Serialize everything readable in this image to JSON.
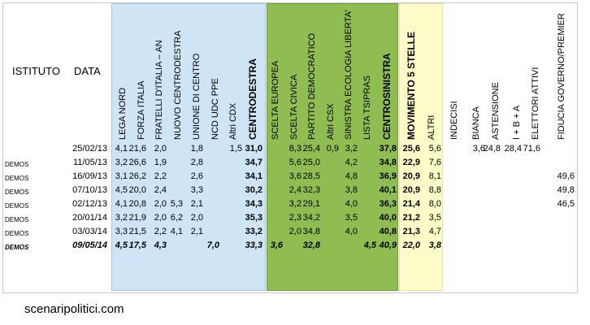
{
  "chart_data": {
    "type": "table",
    "header_institute": "ISTITUTO",
    "header_date": "DATA",
    "columns": [
      "LEGA NORD",
      "FORZA ITALIA",
      "FRATELLI D'ITALIA – AN",
      "NUOVO CENTRODESTRA",
      "UNIONE DI CENTRO",
      "NCD UDC PPE",
      "Altri CDX",
      "CENTRODESTRA",
      "SCELTA EUROPEA",
      "SCELTA CIVICA",
      "PARTITO DEMOCRATICO",
      "Altri CSX",
      "SINISTRA ECOLOGIA LIBERTA'",
      "LISTA TSIPRAS",
      "CENTROSINISTRA",
      "MOVIMENTO 5 STELLE",
      "ALTRI",
      "INDECISI",
      "BIANCA",
      "ASTENSIONE",
      "I + B + A",
      "ELETTORI ATTIVI",
      "FIDUCIA GOVERNO/PREMIER"
    ],
    "rows": [
      {
        "institute": "",
        "date": "25/02/13",
        "values": [
          "4,1",
          "21,6",
          "2,0",
          "",
          "1,8",
          "",
          "1,5",
          "31,0",
          "",
          "8,3",
          "25,4",
          "0,9",
          "3,2",
          "",
          "37,8",
          "25,6",
          "5,6",
          "",
          "3,6",
          "24,8",
          "28,4",
          "71,6",
          ""
        ]
      },
      {
        "institute": "DEMOS",
        "date": "11/05/13",
        "values": [
          "3,2",
          "26,6",
          "1,9",
          "",
          "2,8",
          "",
          "",
          "34,7",
          "",
          "5,6",
          "25,0",
          "",
          "4,2",
          "",
          "34,8",
          "22,9",
          "7,6",
          "",
          "",
          "",
          "",
          "",
          ""
        ]
      },
      {
        "institute": "DEMOS",
        "date": "16/09/13",
        "values": [
          "3,1",
          "26,2",
          "2,2",
          "",
          "2,6",
          "",
          "",
          "34,1",
          "",
          "3,6",
          "28,5",
          "",
          "4,8",
          "",
          "36,9",
          "20,9",
          "8,1",
          "",
          "",
          "",
          "",
          "",
          "49,6"
        ]
      },
      {
        "institute": "DEMOS",
        "date": "07/10/13",
        "values": [
          "4,5",
          "20,0",
          "2,4",
          "",
          "3,3",
          "",
          "",
          "30,2",
          "",
          "2,4",
          "32,3",
          "",
          "3,8",
          "",
          "40,1",
          "20,9",
          "8,8",
          "",
          "",
          "",
          "",
          "",
          "49,8"
        ]
      },
      {
        "institute": "DEMOS",
        "date": "02/12/13",
        "values": [
          "4,1",
          "20,8",
          "2,0",
          "5,3",
          "2,1",
          "",
          "",
          "34,3",
          "",
          "3,2",
          "29,1",
          "",
          "4,0",
          "",
          "36,3",
          "21,4",
          "8,0",
          "",
          "",
          "",
          "",
          "",
          "46,5"
        ]
      },
      {
        "institute": "DEMOS",
        "date": "20/01/14",
        "values": [
          "3,2",
          "21,9",
          "2,0",
          "6,2",
          "2,0",
          "",
          "",
          "35,3",
          "",
          "2,3",
          "34,2",
          "",
          "3,5",
          "",
          "40,0",
          "21,2",
          "3,5",
          "",
          "",
          "",
          "",
          "",
          ""
        ]
      },
      {
        "institute": "DEMOS",
        "date": "03/03/14",
        "values": [
          "3,3",
          "21,5",
          "2,2",
          "4,1",
          "2,1",
          "",
          "",
          "33,2",
          "",
          "2,0",
          "34,8",
          "",
          "4,0",
          "",
          "40,8",
          "21,3",
          "4,7",
          "",
          "",
          "",
          "",
          "",
          ""
        ]
      },
      {
        "institute": "DEMOS",
        "date": "09/05/14",
        "values": [
          "4,5",
          "17,5",
          "4,3",
          "",
          "",
          "7,0",
          "",
          "33,3",
          "3,6",
          "",
          "32,8",
          "",
          "",
          "4,5",
          "40,9",
          "22,0",
          "3,8",
          "",
          "",
          "",
          "",
          "",
          ""
        ]
      }
    ]
  },
  "footer": "scenaripolitici.com"
}
